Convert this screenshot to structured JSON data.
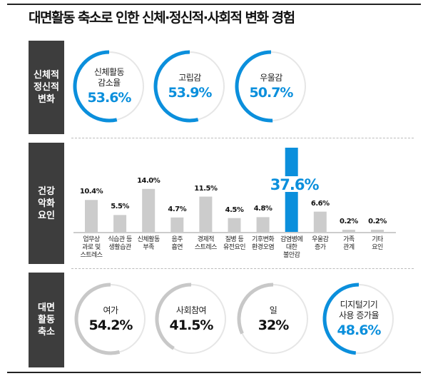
{
  "title": "대면활동 축소로 인한 신체·정신적·사회적 변화 경험",
  "colors": {
    "accent": "#0b8fdc",
    "bar": "#cccccc",
    "ring_track": "#e6e6e6",
    "ring_gray": "#c8c8c8",
    "side": "#3d3d3d"
  },
  "chart_data": [
    {
      "type": "donut",
      "section_label": "신체적\n정신적\n변화",
      "items": [
        {
          "label": "신체활동\n감소율",
          "value": 53.6,
          "display": "53.6%",
          "highlight": true
        },
        {
          "label": "고립감",
          "value": 53.9,
          "display": "53.9%",
          "highlight": true
        },
        {
          "label": "우울감",
          "value": 50.7,
          "display": "50.7%",
          "highlight": true
        }
      ]
    },
    {
      "type": "bar",
      "section_label": "건강\n악화\n요인",
      "categories": [
        "업무상\n과로 및\n스트레스",
        "식습관 등\n생활습관",
        "신체활동\n부족",
        "음주\n흡연",
        "경제적\n스트레스",
        "질병 등\n유전요인",
        "기후변화\n환경오염",
        "감염병에\n대한\n불안감",
        "우울감\n증가",
        "가족\n관계",
        "기타\n요인"
      ],
      "values": [
        10.4,
        5.5,
        14.0,
        4.7,
        11.5,
        4.5,
        4.8,
        37.6,
        6.6,
        0.2,
        0.2
      ],
      "labels": [
        "10.4%",
        "5.5%",
        "14.0%",
        "4.7%",
        "11.5%",
        "4.5%",
        "4.8%",
        "37.6%",
        "6.6%",
        "0.2%",
        "0.2%"
      ],
      "highlight_index": 7
    },
    {
      "type": "donut",
      "section_label": "대면\n활동\n축소",
      "items": [
        {
          "label": "여가",
          "value": 54.2,
          "display": "54.2%",
          "highlight": false
        },
        {
          "label": "사회참여",
          "value": 41.5,
          "display": "41.5%",
          "highlight": false
        },
        {
          "label": "일",
          "value": 32,
          "display": "32%",
          "highlight": false
        },
        {
          "label": "디지털기기\n사용 증가율",
          "value": 48.6,
          "display": "48.6%",
          "highlight": true
        }
      ]
    }
  ]
}
